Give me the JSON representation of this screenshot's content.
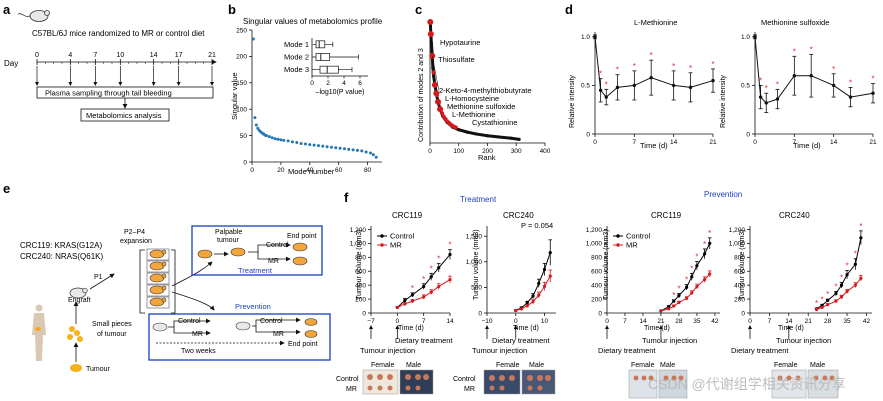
{
  "panel_labels": {
    "a": "a",
    "b": "b",
    "c": "c",
    "d": "d",
    "e": "e",
    "f": "f"
  },
  "panel_a": {
    "randomize_text": "C57BL/6J mice randomized to MR or control diet",
    "day_label": "Day",
    "days": [
      "0",
      "4",
      "7",
      "10",
      "14",
      "17",
      "21"
    ],
    "sampling_text": "Plasma sampling through tail bleeding",
    "analysis_text": "Metabolomics analysis"
  },
  "panel_e": {
    "line1": "CRC119: KRAS(G12A)",
    "line2": "CRC240: NRAS(Q61K)",
    "expansion1": "P2–P4",
    "expansion2": "expansion",
    "p1": "P1",
    "engraft": "Engraft",
    "small1": "Small pieces",
    "small2": "of tumour",
    "tumour": "Tumour",
    "treatment_box": {
      "palpable1": "Palpable",
      "palpable2": "tumour",
      "end_point": "End point",
      "control": "Control",
      "mr": "MR",
      "title": "Treatment"
    },
    "prevention_box": {
      "control": "Control",
      "mr": "MR",
      "two_weeks": "Two weeks",
      "end_point": "End point",
      "title": "Prevention"
    }
  },
  "panel_f": {
    "treatment_title": "Treatment",
    "prevention_title": "Prevention",
    "dietary_treatment": "Dietary treatment",
    "tumour_injection": "Tumour injection",
    "photo_row_control": "Control",
    "photo_row_mr": "MR",
    "female": "Female",
    "male": "Male"
  },
  "watermark": "CSDN @代谢组学相关资讯分享",
  "colors": {
    "control": "#000000",
    "mr": "#d7191c",
    "bar": "#1f78b4",
    "blue_box": "#1a3fbf"
  },
  "chart_data": [
    {
      "id": "b",
      "type": "scatter",
      "title": "Singular values of metabolomics profile",
      "xlabel": "Mode number",
      "ylabel": "Singular value",
      "xlim": [
        0,
        90
      ],
      "ylim": [
        0,
        250
      ],
      "xticks": [
        "0",
        "20",
        "40",
        "60",
        "80"
      ],
      "yticks": [
        "0",
        "50",
        "100",
        "150",
        "200",
        "250"
      ],
      "inset": {
        "type": "box",
        "categories": [
          "Mode 1",
          "Mode 2",
          "Mode 3"
        ],
        "xlabel": "–log10(P value)",
        "xticks": [
          "0",
          "2",
          "4",
          "6"
        ],
        "xlim": [
          0,
          7
        ],
        "boxes": [
          {
            "min": 0.1,
            "q1": 0.5,
            "median": 0.9,
            "q3": 1.6,
            "max": 2.6
          },
          {
            "min": 0.0,
            "q1": 0.5,
            "median": 1.1,
            "q3": 2.2,
            "max": 5.8
          },
          {
            "min": 0.0,
            "q1": 1.0,
            "median": 1.9,
            "q3": 3.3,
            "max": 5.0
          }
        ]
      },
      "points": [
        [
          1,
          233
        ],
        [
          2,
          84
        ],
        [
          3,
          70
        ],
        [
          4,
          64
        ],
        [
          5,
          60
        ],
        [
          6,
          57
        ],
        [
          7,
          55
        ],
        [
          8,
          53
        ],
        [
          9,
          51
        ],
        [
          10,
          50
        ],
        [
          12,
          48
        ],
        [
          14,
          46
        ],
        [
          16,
          44
        ],
        [
          18,
          43
        ],
        [
          20,
          42
        ],
        [
          22,
          41
        ],
        [
          25,
          40
        ],
        [
          28,
          38
        ],
        [
          31,
          37
        ],
        [
          34,
          35
        ],
        [
          37,
          34
        ],
        [
          40,
          33
        ],
        [
          43,
          32
        ],
        [
          46,
          31
        ],
        [
          49,
          30
        ],
        [
          52,
          29
        ],
        [
          55,
          28
        ],
        [
          58,
          27
        ],
        [
          61,
          26
        ],
        [
          64,
          25
        ],
        [
          67,
          24
        ],
        [
          70,
          23
        ],
        [
          73,
          22
        ],
        [
          76,
          21
        ],
        [
          79,
          19
        ],
        [
          82,
          17
        ],
        [
          84,
          14
        ],
        [
          86,
          9
        ]
      ]
    },
    {
      "id": "c",
      "type": "scatter",
      "xlabel": "Rank",
      "ylabel": "Contribution of modes 2 and 3",
      "xlim": [
        0,
        400
      ],
      "xticks": [
        "0",
        "100",
        "200",
        "300",
        "400"
      ],
      "annotations": [
        "Hypotaurine",
        "Thiosulfate",
        "2-Keto-4-methylthiobutyrate",
        "L-Homocysteine",
        "Methionine sulfoxide",
        "L-Methionine",
        "Cystathionine"
      ],
      "points": [
        [
          1,
          1.0
        ],
        [
          3,
          0.9
        ],
        [
          5,
          0.82
        ],
        [
          8,
          0.72
        ],
        [
          10,
          0.62
        ],
        [
          13,
          0.55
        ],
        [
          17,
          0.48
        ],
        [
          22,
          0.41
        ],
        [
          28,
          0.34
        ],
        [
          35,
          0.28
        ],
        [
          45,
          0.22
        ],
        [
          60,
          0.17
        ],
        [
          80,
          0.13
        ],
        [
          100,
          0.11
        ],
        [
          130,
          0.09
        ],
        [
          160,
          0.075
        ],
        [
          200,
          0.06
        ],
        [
          240,
          0.05
        ],
        [
          280,
          0.04
        ],
        [
          310,
          0.03
        ]
      ],
      "highlighted_ranks": [
        1,
        3,
        8,
        17,
        22,
        28,
        35
      ]
    },
    {
      "id": "d1",
      "type": "line",
      "title": "L-Methionine",
      "xlabel": "Time (d)",
      "ylabel": "Relative intensity",
      "xlim": [
        0,
        21
      ],
      "ylim": [
        0,
        1.05
      ],
      "xticks": [
        "0",
        "7",
        "14",
        "21"
      ],
      "yticks": [
        "0",
        "0.5",
        "1.0"
      ],
      "series": [
        {
          "x": [
            0,
            1,
            2,
            4,
            7,
            10,
            14,
            17,
            21
          ],
          "y": [
            1.0,
            0.45,
            0.38,
            0.48,
            0.5,
            0.58,
            0.5,
            0.48,
            0.55
          ],
          "err": [
            0.02,
            0.12,
            0.08,
            0.13,
            0.15,
            0.18,
            0.15,
            0.15,
            0.12
          ],
          "sig": [
            false,
            true,
            true,
            true,
            true,
            true,
            true,
            true,
            true
          ]
        }
      ]
    },
    {
      "id": "d2",
      "type": "line",
      "title": "Methionine sulfoxide",
      "xlabel": "Time (d)",
      "ylabel": "Relative intensity",
      "xlim": [
        0,
        21
      ],
      "ylim": [
        0,
        1.05
      ],
      "xticks": [
        "0",
        "7",
        "14",
        "21"
      ],
      "yticks": [
        "0",
        "0.5",
        "1.0"
      ],
      "series": [
        {
          "x": [
            0,
            1,
            2,
            4,
            7,
            10,
            14,
            17,
            21
          ],
          "y": [
            1.0,
            0.38,
            0.32,
            0.36,
            0.6,
            0.6,
            0.5,
            0.38,
            0.42
          ],
          "err": [
            0.02,
            0.12,
            0.1,
            0.1,
            0.2,
            0.22,
            0.12,
            0.1,
            0.1
          ],
          "sig": [
            false,
            true,
            true,
            true,
            true,
            true,
            true,
            true,
            true
          ]
        }
      ]
    },
    {
      "id": "f1",
      "type": "line",
      "title": "CRC119",
      "group": "Treatment",
      "xlabel": "Time (d)",
      "ylabel": "Tumour volume (mm3)",
      "xlim": [
        -7,
        14
      ],
      "ylim": [
        0,
        1250
      ],
      "xticks": [
        "−7",
        "0",
        "7",
        "14"
      ],
      "yticks": [
        "0",
        "200",
        "400",
        "600",
        "800",
        "1,000",
        "1,200"
      ],
      "legend": [
        "Control",
        "MR"
      ],
      "series": [
        {
          "name": "Control",
          "x": [
            0,
            2,
            4,
            7,
            9,
            11,
            14
          ],
          "y": [
            80,
            180,
            260,
            380,
            520,
            650,
            840
          ],
          "err": [
            15,
            30,
            30,
            40,
            50,
            60,
            70
          ]
        },
        {
          "name": "MR",
          "x": [
            0,
            2,
            4,
            7,
            9,
            11,
            14
          ],
          "y": [
            80,
            130,
            170,
            230,
            300,
            380,
            480
          ],
          "err": [
            15,
            20,
            25,
            30,
            35,
            40,
            50
          ]
        }
      ],
      "sig": [
        "",
        "",
        "*",
        "*",
        "*",
        "*",
        "*"
      ]
    },
    {
      "id": "f2",
      "type": "line",
      "title": "CRC240",
      "group": "Treatment",
      "xlabel": "Time (d)",
      "ylabel": "Tumour volume (mm3)",
      "xlim": [
        -10,
        14
      ],
      "ylim": [
        0,
        1700
      ],
      "xticks": [
        "−10",
        "0",
        "10"
      ],
      "yticks": [
        "0",
        "500",
        "1,000",
        "1,500"
      ],
      "annotation": "P = 0.054",
      "series": [
        {
          "name": "Control",
          "x": [
            0,
            2,
            4,
            6,
            8,
            10,
            12
          ],
          "y": [
            50,
            100,
            200,
            330,
            580,
            850,
            1180
          ],
          "err": [
            10,
            20,
            30,
            50,
            80,
            120,
            250
          ]
        },
        {
          "name": "MR",
          "x": [
            0,
            2,
            4,
            6,
            8,
            10,
            12
          ],
          "y": [
            50,
            80,
            140,
            220,
            350,
            520,
            720
          ],
          "err": [
            10,
            15,
            25,
            40,
            60,
            80,
            120
          ]
        }
      ]
    },
    {
      "id": "f3",
      "type": "line",
      "title": "CRC119",
      "group": "Prevention",
      "xlabel": "Time (d)",
      "ylabel": "Tumour volume (mm3)",
      "xlim": [
        0,
        44
      ],
      "ylim": [
        0,
        1250
      ],
      "xticks": [
        "0",
        "7",
        "14",
        "21",
        "28",
        "35",
        "42"
      ],
      "yticks": [
        "0",
        "200",
        "400",
        "600",
        "800",
        "1,000",
        "1,200"
      ],
      "legend": [
        "Control",
        "MR"
      ],
      "series": [
        {
          "name": "Control",
          "x": [
            21,
            24,
            26,
            28,
            31,
            33,
            35,
            38,
            40
          ],
          "y": [
            30,
            90,
            170,
            250,
            370,
            520,
            680,
            850,
            1000
          ],
          "err": [
            5,
            15,
            20,
            30,
            40,
            50,
            60,
            70,
            80
          ]
        },
        {
          "name": "MR",
          "x": [
            21,
            24,
            26,
            28,
            31,
            33,
            35,
            38,
            40
          ],
          "y": [
            30,
            60,
            100,
            150,
            210,
            290,
            380,
            480,
            560
          ],
          "err": [
            5,
            10,
            15,
            20,
            25,
            30,
            35,
            40,
            45
          ]
        }
      ],
      "sig": [
        "",
        "",
        "*",
        "*",
        "*",
        "*",
        "*",
        "*",
        "*"
      ]
    },
    {
      "id": "f4",
      "type": "line",
      "title": "CRC240",
      "group": "Prevention",
      "xlabel": "Time (d)",
      "ylabel": "Tumour volume (mm3)",
      "xlim": [
        0,
        44
      ],
      "ylim": [
        0,
        1250
      ],
      "xticks": [
        "0",
        "7",
        "14",
        "21",
        "28",
        "35",
        "42"
      ],
      "yticks": [
        "0",
        "200",
        "400",
        "600",
        "800",
        "1,000",
        "1,200"
      ],
      "series": [
        {
          "name": "Control",
          "x": [
            24,
            26,
            28,
            31,
            33,
            35,
            38,
            40
          ],
          "y": [
            60,
            110,
            180,
            280,
            400,
            550,
            700,
            1080
          ],
          "err": [
            10,
            15,
            20,
            30,
            40,
            60,
            80,
            100
          ]
        },
        {
          "name": "MR",
          "x": [
            24,
            26,
            28,
            31,
            33,
            35,
            38,
            40
          ],
          "y": [
            50,
            80,
            120,
            170,
            230,
            310,
            400,
            500
          ],
          "err": [
            10,
            12,
            15,
            20,
            25,
            30,
            35,
            40
          ]
        }
      ],
      "sig": [
        "*",
        "*",
        "*",
        "*",
        "*",
        "*",
        "*",
        "*"
      ]
    }
  ]
}
